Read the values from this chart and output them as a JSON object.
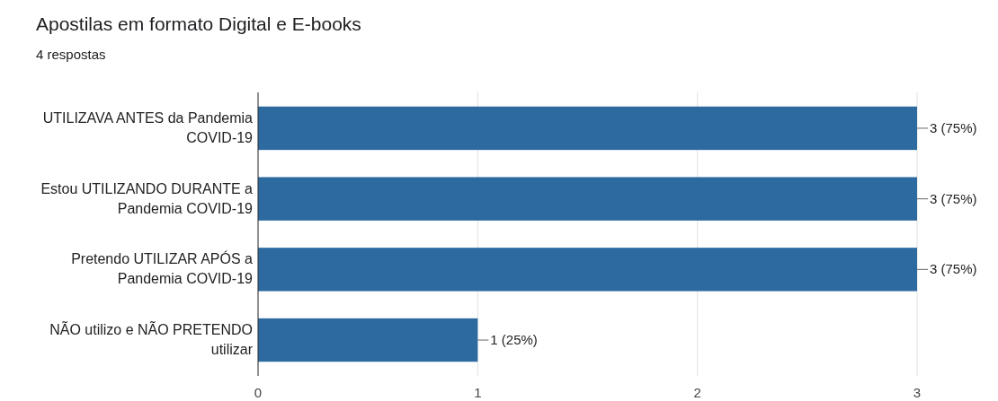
{
  "chart_data": {
    "type": "bar",
    "orientation": "horizontal",
    "title": "Apostilas em formato Digital e E-books",
    "subtitle": "4 respostas",
    "categories": [
      "UTILIZAVA ANTES da Pandemia COVID-19",
      "Estou UTILIZANDO DURANTE a Pandemia COVID-19",
      "Pretendo UTILIZAR APÓS a Pandemia COVID-19",
      "NÃO utilizo e NÃO PRETENDO utilizar"
    ],
    "values": [
      3,
      3,
      3,
      1
    ],
    "value_labels": [
      "3 (75%)",
      "3 (75%)",
      "3 (75%)",
      "1 (25%)"
    ],
    "color": "#2d6a9f",
    "xlim": [
      0,
      3
    ],
    "xticks": [
      0,
      1,
      2,
      3
    ],
    "grid": "x"
  }
}
